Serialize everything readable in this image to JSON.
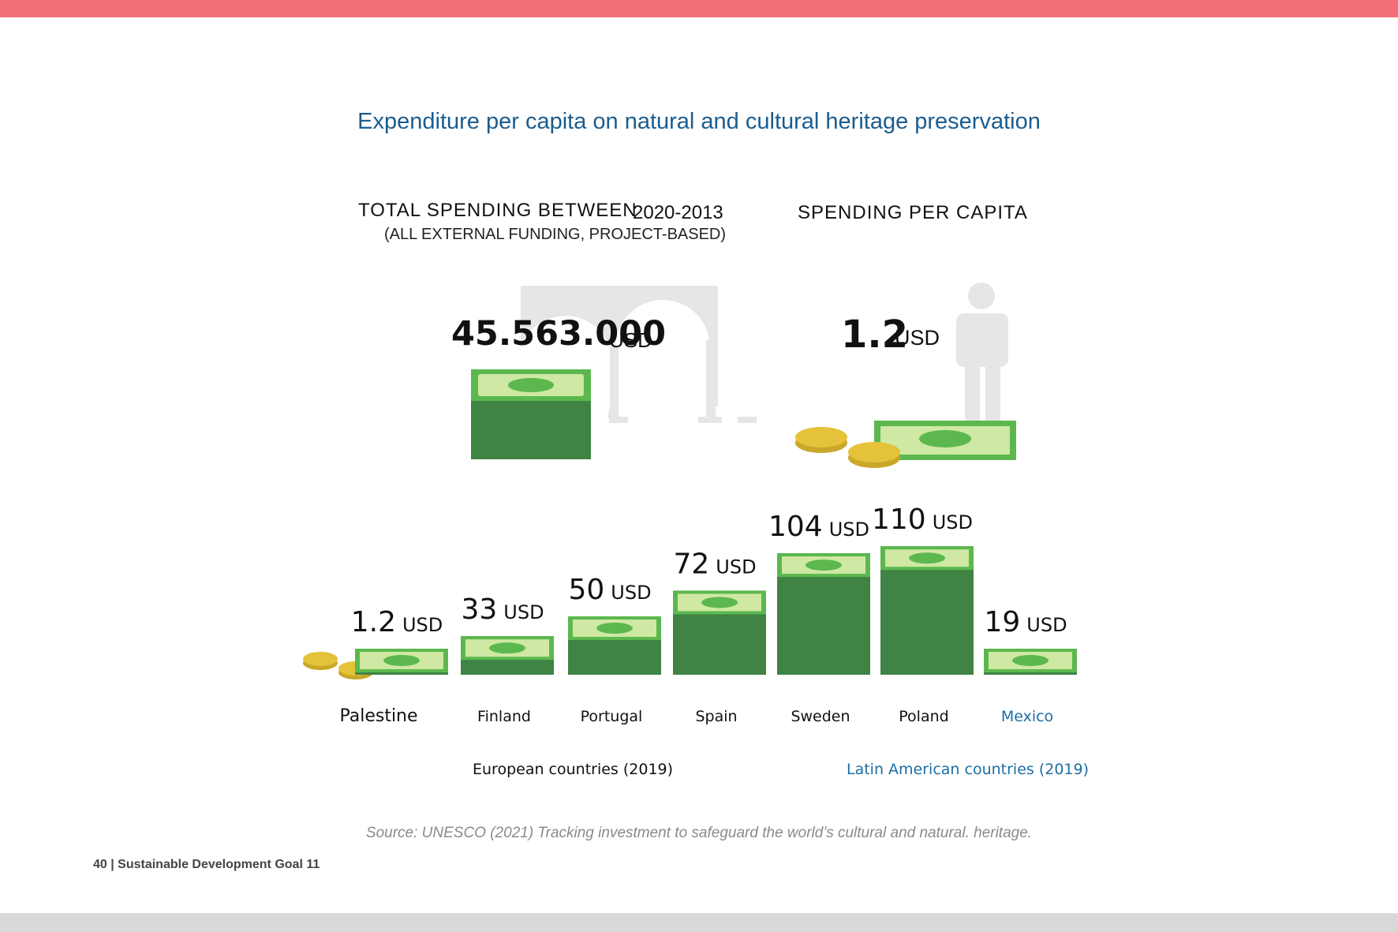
{
  "title": "Expenditure per capita on natural and cultural heritage preservation",
  "total_spending": {
    "heading": "TOTAL SPENDING BETWEEN",
    "years": "2020-2013",
    "subheading": "(ALL EXTERNAL FUNDING, PROJECT-BASED)",
    "amount": "45.563.000",
    "unit": "USD",
    "icon": "arch-ruins-icon"
  },
  "per_capita": {
    "heading": "SPENDING PER CAPITA",
    "amount": "1.2",
    "unit": "USD",
    "icon": "person-icon"
  },
  "chart_data": {
    "type": "bar",
    "categories": [
      "Palestine",
      "Finland",
      "Portugal",
      "Spain",
      "Sweden",
      "Poland",
      "Mexico"
    ],
    "values": [
      1.2,
      33,
      50,
      72,
      104,
      110,
      19
    ],
    "value_labels": [
      "1.2",
      "33",
      "50",
      "72",
      "104",
      "110",
      "19"
    ],
    "unit": "USD",
    "groups": [
      {
        "label": "European countries (2019)",
        "categories": [
          "Finland",
          "Portugal",
          "Spain",
          "Sweden",
          "Poland"
        ]
      },
      {
        "label": "Latin American countries (2019)",
        "categories": [
          "Mexico"
        ]
      }
    ],
    "highlight": "Mexico",
    "mark_icon": "banknote-stack-icon"
  },
  "source": "Source: UNESCO (2021) Tracking investment to safeguard the world’s cultural and natural. heritage.",
  "footer": "40 | Sustainable Development Goal 11",
  "colors": {
    "top_band": "#f46f79",
    "bottom_band": "#d9d9d9",
    "title": "#1b5d8f",
    "note_dark": "#3f8345",
    "note_light": "#cfe8a4",
    "note_mid": "#5cb84e",
    "coin": "#e4c23a",
    "coin_light": "#f2df8a",
    "gray_icon": "#e6e6e8",
    "latin_blue": "#1d6ea3",
    "text": "#111111"
  }
}
